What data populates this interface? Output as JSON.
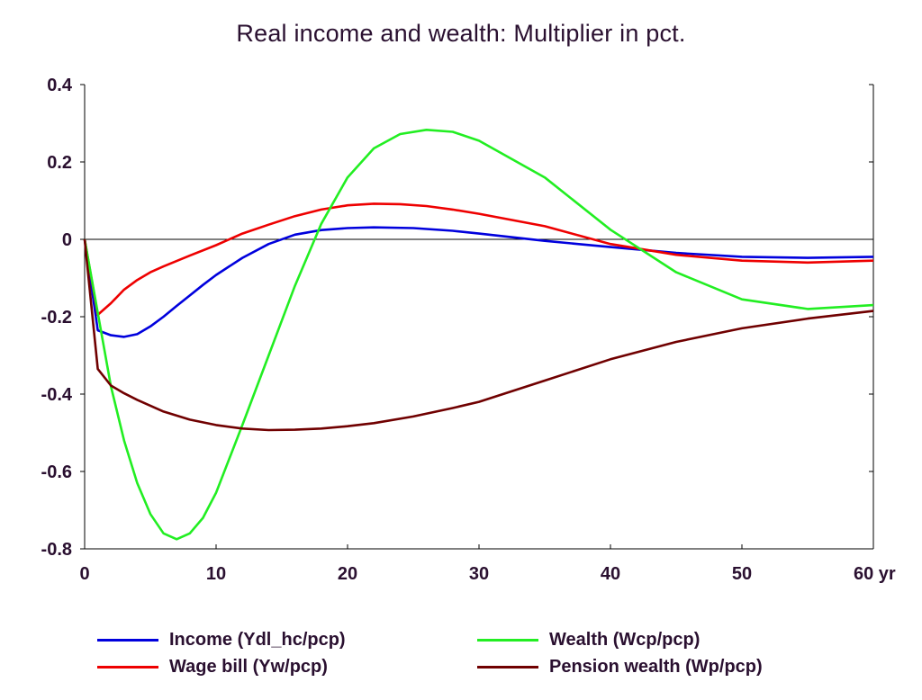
{
  "title": "Real income and wealth: Multiplier in pct.",
  "chart_data": {
    "type": "line",
    "title": "Real income and wealth: Multiplier in pct.",
    "xlabel": "",
    "ylabel": "",
    "xlim": [
      0,
      60
    ],
    "ylim": [
      -0.8,
      0.4
    ],
    "x_ticks": [
      "0",
      "10",
      "20",
      "30",
      "40",
      "50",
      "60 yr"
    ],
    "y_ticks": [
      "0.4",
      "0.2",
      "0",
      "-0.2",
      "-0.4",
      "-0.6",
      "-0.8"
    ],
    "grid": false,
    "zero_line": true,
    "legend_position": "bottom",
    "series": [
      {
        "name": "Income (Ydl_hc/pcp)",
        "color": "#0000dd",
        "points": [
          [
            0,
            0
          ],
          [
            1,
            -0.235
          ],
          [
            2,
            -0.248
          ],
          [
            3,
            -0.252
          ],
          [
            4,
            -0.245
          ],
          [
            5,
            -0.225
          ],
          [
            6,
            -0.2
          ],
          [
            7,
            -0.172
          ],
          [
            8,
            -0.145
          ],
          [
            9,
            -0.118
          ],
          [
            10,
            -0.092
          ],
          [
            12,
            -0.048
          ],
          [
            14,
            -0.012
          ],
          [
            16,
            0.012
          ],
          [
            18,
            0.024
          ],
          [
            20,
            0.029
          ],
          [
            22,
            0.031
          ],
          [
            25,
            0.029
          ],
          [
            28,
            0.022
          ],
          [
            30,
            0.015
          ],
          [
            35,
            -0.004
          ],
          [
            40,
            -0.02
          ],
          [
            45,
            -0.035
          ],
          [
            50,
            -0.045
          ],
          [
            55,
            -0.048
          ],
          [
            60,
            -0.045
          ]
        ]
      },
      {
        "name": "Wage bill (Yw/pcp)",
        "color": "#ee0000",
        "points": [
          [
            0,
            0
          ],
          [
            1,
            -0.195
          ],
          [
            2,
            -0.165
          ],
          [
            3,
            -0.13
          ],
          [
            4,
            -0.105
          ],
          [
            5,
            -0.085
          ],
          [
            6,
            -0.07
          ],
          [
            8,
            -0.042
          ],
          [
            10,
            -0.015
          ],
          [
            12,
            0.015
          ],
          [
            14,
            0.038
          ],
          [
            16,
            0.06
          ],
          [
            18,
            0.077
          ],
          [
            20,
            0.088
          ],
          [
            22,
            0.092
          ],
          [
            24,
            0.091
          ],
          [
            26,
            0.086
          ],
          [
            28,
            0.077
          ],
          [
            30,
            0.066
          ],
          [
            35,
            0.034
          ],
          [
            40,
            -0.012
          ],
          [
            45,
            -0.04
          ],
          [
            50,
            -0.055
          ],
          [
            55,
            -0.06
          ],
          [
            60,
            -0.055
          ]
        ]
      },
      {
        "name": "Wealth (Wcp/pcp)",
        "color": "#22ee22",
        "points": [
          [
            0,
            0
          ],
          [
            1,
            -0.19
          ],
          [
            2,
            -0.38
          ],
          [
            3,
            -0.52
          ],
          [
            4,
            -0.63
          ],
          [
            5,
            -0.71
          ],
          [
            6,
            -0.76
          ],
          [
            7,
            -0.775
          ],
          [
            8,
            -0.76
          ],
          [
            9,
            -0.72
          ],
          [
            10,
            -0.655
          ],
          [
            12,
            -0.48
          ],
          [
            14,
            -0.3
          ],
          [
            16,
            -0.12
          ],
          [
            18,
            0.04
          ],
          [
            20,
            0.16
          ],
          [
            22,
            0.235
          ],
          [
            24,
            0.272
          ],
          [
            26,
            0.283
          ],
          [
            28,
            0.278
          ],
          [
            30,
            0.255
          ],
          [
            35,
            0.16
          ],
          [
            40,
            0.025
          ],
          [
            45,
            -0.085
          ],
          [
            50,
            -0.155
          ],
          [
            55,
            -0.18
          ],
          [
            60,
            -0.17
          ]
        ]
      },
      {
        "name": "Pension wealth (Wp/pcp)",
        "color": "#700000",
        "points": [
          [
            0,
            0
          ],
          [
            1,
            -0.335
          ],
          [
            2,
            -0.378
          ],
          [
            3,
            -0.398
          ],
          [
            4,
            -0.415
          ],
          [
            6,
            -0.445
          ],
          [
            8,
            -0.466
          ],
          [
            10,
            -0.48
          ],
          [
            12,
            -0.489
          ],
          [
            14,
            -0.493
          ],
          [
            16,
            -0.492
          ],
          [
            18,
            -0.489
          ],
          [
            20,
            -0.483
          ],
          [
            22,
            -0.475
          ],
          [
            25,
            -0.458
          ],
          [
            28,
            -0.436
          ],
          [
            30,
            -0.42
          ],
          [
            35,
            -0.365
          ],
          [
            40,
            -0.31
          ],
          [
            45,
            -0.265
          ],
          [
            50,
            -0.23
          ],
          [
            55,
            -0.205
          ],
          [
            60,
            -0.185
          ]
        ]
      }
    ]
  }
}
